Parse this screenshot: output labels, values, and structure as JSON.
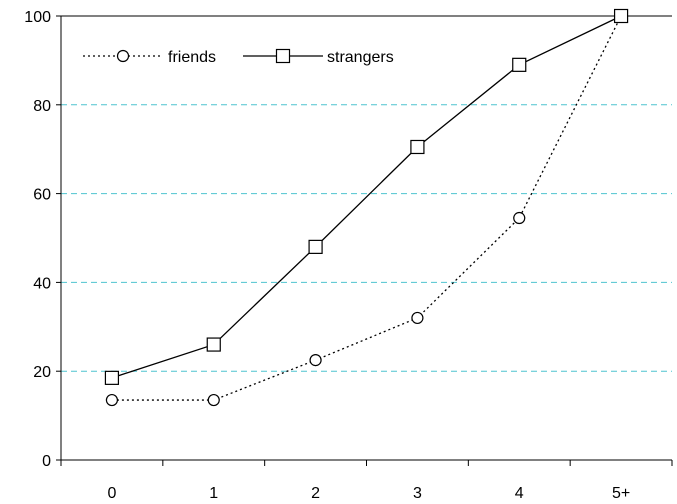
{
  "chart_data": {
    "type": "line",
    "categories": [
      "0",
      "1",
      "2",
      "3",
      "4",
      "5+"
    ],
    "series": [
      {
        "name": "friends",
        "values": [
          13.5,
          13.5,
          22.5,
          32,
          54.5,
          100
        ],
        "line_style": "dotted",
        "marker": "circle"
      },
      {
        "name": "strangers",
        "values": [
          18.5,
          26,
          48,
          70.5,
          89,
          100
        ],
        "line_style": "solid",
        "marker": "square"
      }
    ],
    "ylim": [
      0,
      100
    ],
    "yticks": [
      "0",
      "20",
      "40",
      "60",
      "80",
      "100"
    ],
    "grid": {
      "horizontal": true,
      "style": "dashed",
      "color": "#4fc4cf"
    },
    "legend": {
      "placement": "top-left"
    },
    "colors": {
      "line": "#000000",
      "marker_fill": "#ffffff"
    }
  }
}
